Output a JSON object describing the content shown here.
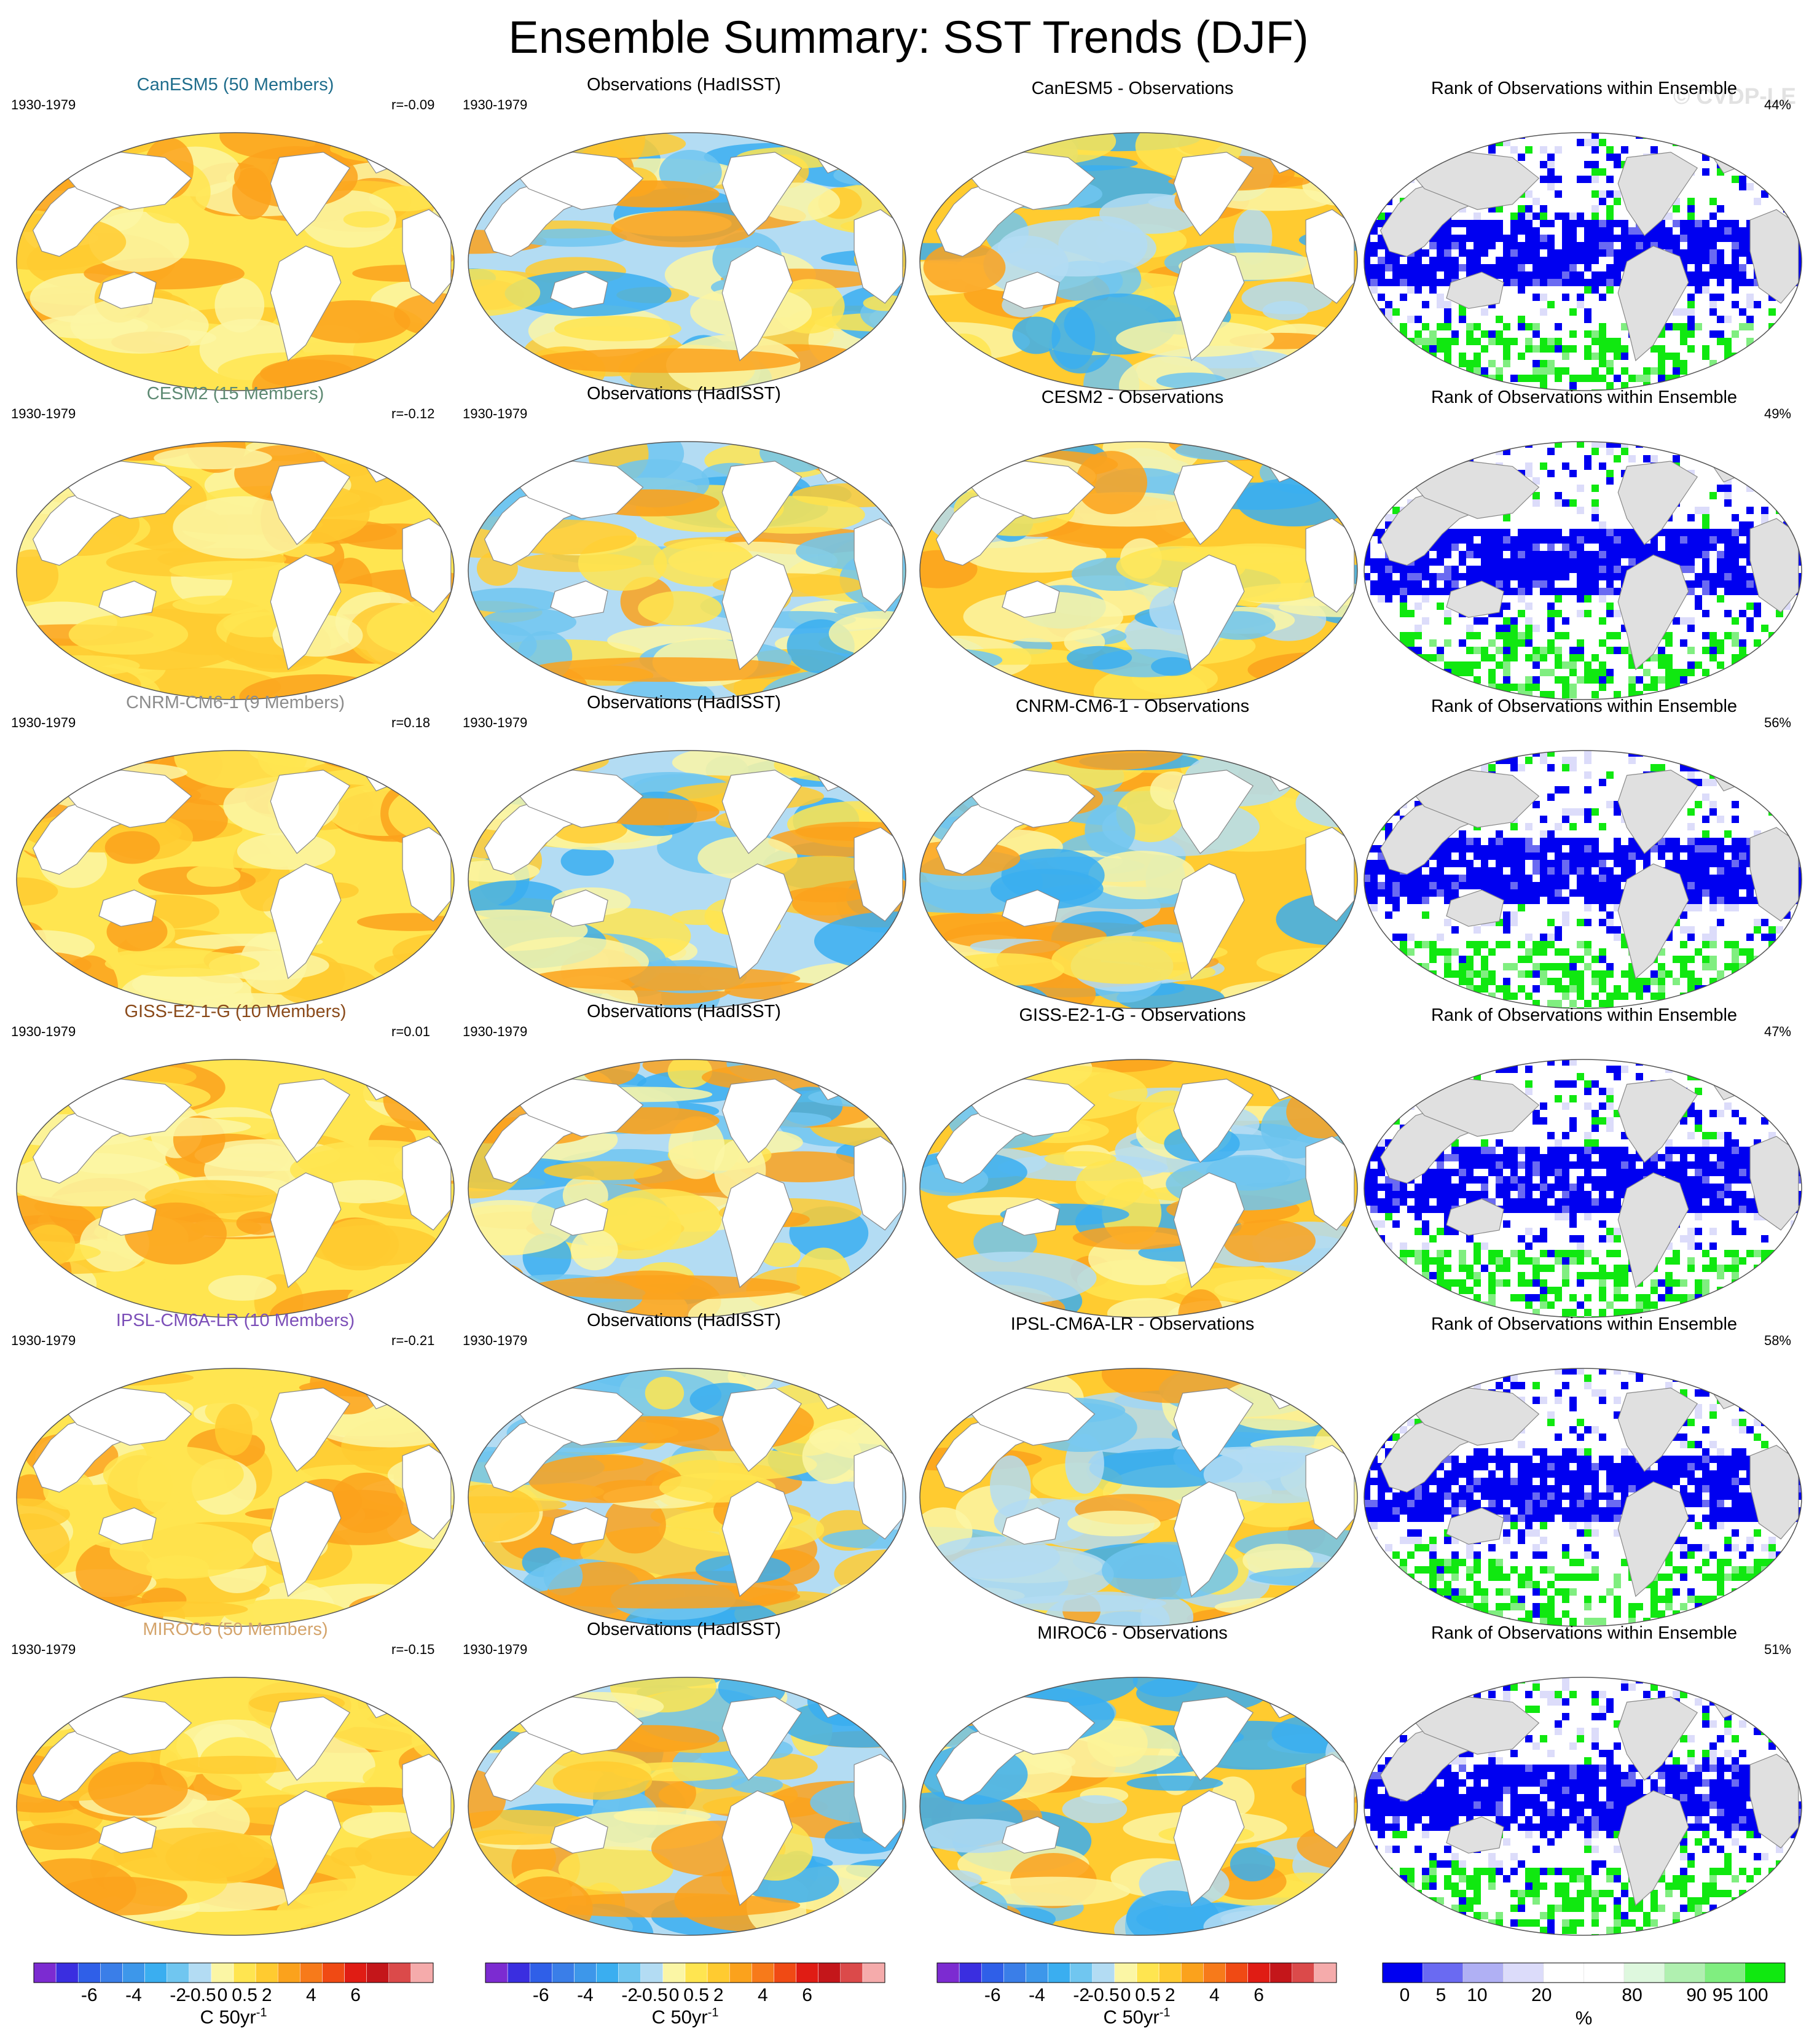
{
  "title": "Ensemble Summary: SST Trends (DJF)",
  "watermark": "© CVDP-LE",
  "rank_title": "Rank of Observations within Ensemble",
  "obs_title": "Observations (HadISST)",
  "period": "1930-1979",
  "rows": [
    {
      "model_title": "CanESM5 (50 Members)",
      "model_color": "#1f6d8c",
      "r_label": "r=-0.09",
      "diff_title": "CanESM5 - Observations",
      "rank_pct": "44%"
    },
    {
      "model_title": "CESM2 (15 Members)",
      "model_color": "#5e8a73",
      "r_label": "r=-0.12",
      "diff_title": "CESM2 - Observations",
      "rank_pct": "49%"
    },
    {
      "model_title": "CNRM-CM6-1 (9 Members)",
      "model_color": "#8c8c8c",
      "r_label": "r=0.18",
      "diff_title": "CNRM-CM6-1 - Observations",
      "rank_pct": "56%"
    },
    {
      "model_title": "GISS-E2-1-G (10 Members)",
      "model_color": "#8a4a1a",
      "r_label": "r=0.01",
      "diff_title": "GISS-E2-1-G - Observations",
      "rank_pct": "47%"
    },
    {
      "model_title": "IPSL-CM6A-LR (10 Members)",
      "model_color": "#7c4fb8",
      "r_label": "r=-0.21",
      "diff_title": "IPSL-CM6A-LR - Observations",
      "rank_pct": "58%"
    },
    {
      "model_title": "MIROC6 (50 Members)",
      "model_color": "#d4a46b",
      "r_label": "r=-0.15",
      "diff_title": "MIROC6 - Observations",
      "rank_pct": "51%"
    }
  ],
  "trend_colorbar": {
    "colors": [
      "#7c2bd1",
      "#3a2ee0",
      "#2f5fe8",
      "#3a7ee8",
      "#3d97ea",
      "#3aaef0",
      "#70c6f0",
      "#b3dcf3",
      "#fbf6a5",
      "#ffe550",
      "#ffcb30",
      "#fba21c",
      "#f77a1a",
      "#f04a14",
      "#e01c14",
      "#c4161a",
      "#db4a4a",
      "#f5abab"
    ],
    "labels": [
      "-6",
      "-4",
      "-2",
      "-0.5",
      "0",
      "0.5",
      "2",
      "4",
      "6"
    ],
    "unit": "C 50yr",
    "unit_sup": "-1"
  },
  "rank_colorbar": {
    "colors": [
      "#0000f0",
      "#6a6af2",
      "#b0b0f4",
      "#dcdcfa",
      "#ffffff",
      "#ffffff",
      "#def8de",
      "#b0f0b0",
      "#80ee80",
      "#10e810"
    ],
    "labels": [
      "0",
      "5",
      "10",
      "20",
      "80",
      "90",
      "95",
      "100"
    ],
    "unit": "%"
  }
}
